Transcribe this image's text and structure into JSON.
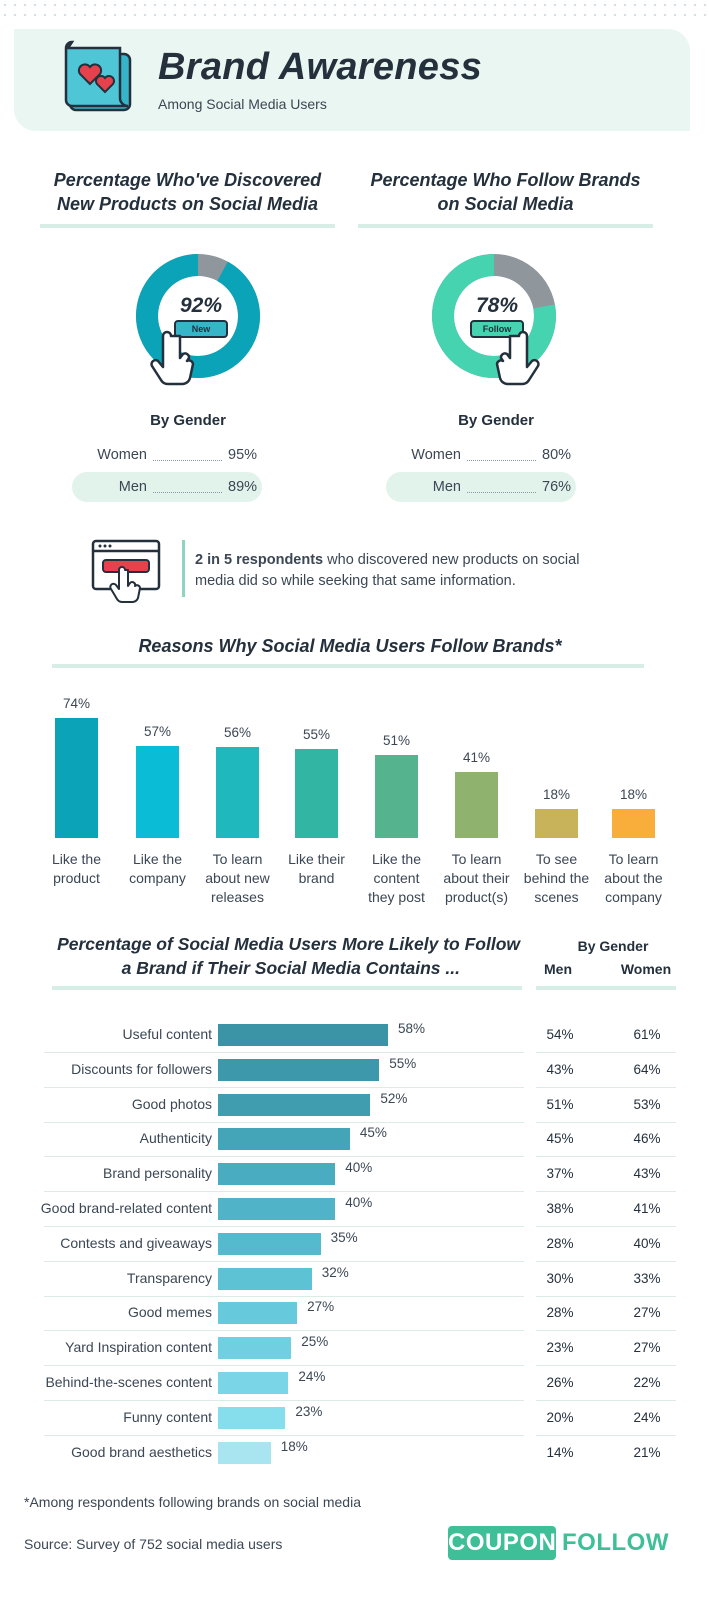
{
  "header": {
    "title": "Brand Awareness",
    "subtitle": "Among Social Media Users"
  },
  "discover": {
    "heading_line1": "Percentage Who've Discovered",
    "heading_line2": "New Products on Social Media",
    "percent": "92%",
    "value": 92,
    "button_label": "New",
    "color": "#0aa3b8",
    "by_gender_label": "By Gender",
    "rows": [
      {
        "label": "Women",
        "value": "95%"
      },
      {
        "label": "Men",
        "value": "89%"
      }
    ]
  },
  "follow": {
    "heading_line1": "Percentage Who Follow Brands",
    "heading_line2": "on Social Media",
    "percent": "78%",
    "value": 78,
    "button_label": "Follow",
    "color": "#46d3b0",
    "by_gender_label": "By Gender",
    "rows": [
      {
        "label": "Women",
        "value": "80%"
      },
      {
        "label": "Men",
        "value": "76%"
      }
    ]
  },
  "callout": {
    "bold": "2 in 5 respondents",
    "rest": " who discovered new products on social media did so while seeking that same information."
  },
  "chart_data": [
    {
      "type": "bar",
      "title": "Reasons Why Social Media Users Follow Brands*",
      "categories": [
        [
          "Like the",
          "product"
        ],
        [
          "Like the",
          "company"
        ],
        [
          "To learn",
          "about new",
          "releases"
        ],
        [
          "Like their",
          "brand"
        ],
        [
          "Like the",
          "content",
          "they post"
        ],
        [
          "To learn",
          "about their",
          "product(s)"
        ],
        [
          "To see",
          "behind the",
          "scenes"
        ],
        [
          "To learn",
          "about the",
          "company"
        ]
      ],
      "values": [
        74,
        57,
        56,
        55,
        51,
        41,
        18,
        18
      ],
      "value_labels": [
        "74%",
        "57%",
        "56%",
        "55%",
        "51%",
        "41%",
        "18%",
        "18%"
      ],
      "colors": [
        "#0aa3b8",
        "#0bbcd6",
        "#1fb9bd",
        "#33b5a4",
        "#55b48d",
        "#8fb26f",
        "#c8b25a",
        "#f9ad3a"
      ],
      "ylim": [
        0,
        74
      ]
    },
    {
      "type": "bar",
      "orientation": "horizontal",
      "title_line1": "Percentage of Social Media Users More Likely to Follow",
      "title_line2": "a Brand if Their Social Media Contains ...",
      "gender_heading": "By Gender",
      "col_men": "Men",
      "col_women": "Women",
      "xlim": [
        0,
        58
      ],
      "rows": [
        {
          "label": "Useful content",
          "value": 58,
          "pct": "58%",
          "men": "54%",
          "women": "61%",
          "color": "#3b93a6"
        },
        {
          "label": "Discounts for followers",
          "value": 55,
          "pct": "55%",
          "men": "43%",
          "women": "64%",
          "color": "#3d98ab"
        },
        {
          "label": "Good photos",
          "value": 52,
          "pct": "52%",
          "men": "51%",
          "women": "53%",
          "color": "#409db0"
        },
        {
          "label": "Authenticity",
          "value": 45,
          "pct": "45%",
          "men": "45%",
          "women": "46%",
          "color": "#44a4b8"
        },
        {
          "label": "Brand personality",
          "value": 40,
          "pct": "40%",
          "men": "37%",
          "women": "43%",
          "color": "#4aacc0"
        },
        {
          "label": "Good brand-related content",
          "value": 40,
          "pct": "40%",
          "men": "38%",
          "women": "41%",
          "color": "#50b3c7"
        },
        {
          "label": "Contests and giveaways",
          "value": 35,
          "pct": "35%",
          "men": "28%",
          "women": "40%",
          "color": "#56bace"
        },
        {
          "label": "Transparency",
          "value": 32,
          "pct": "32%",
          "men": "30%",
          "women": "33%",
          "color": "#5ec2d5"
        },
        {
          "label": "Good memes",
          "value": 27,
          "pct": "27%",
          "men": "28%",
          "women": "27%",
          "color": "#66c9dc"
        },
        {
          "label": "Yard Inspiration content",
          "value": 25,
          "pct": "25%",
          "men": "23%",
          "women": "27%",
          "color": "#70d0e2"
        },
        {
          "label": "Behind-the-scenes content",
          "value": 24,
          "pct": "24%",
          "men": "26%",
          "women": "22%",
          "color": "#7ad6e7"
        },
        {
          "label": "Funny content",
          "value": 23,
          "pct": "23%",
          "men": "20%",
          "women": "24%",
          "color": "#86ddec"
        },
        {
          "label": "Good brand aesthetics",
          "value": 18,
          "pct": "18%",
          "men": "14%",
          "women": "21%",
          "color": "#a8e5f1"
        }
      ]
    }
  ],
  "footer": {
    "footnote": "*Among respondents following brands on social media",
    "source": "Source: Survey of 752 social media users",
    "logo_coupon": "COUPON",
    "logo_follow": "FOLLOW"
  }
}
